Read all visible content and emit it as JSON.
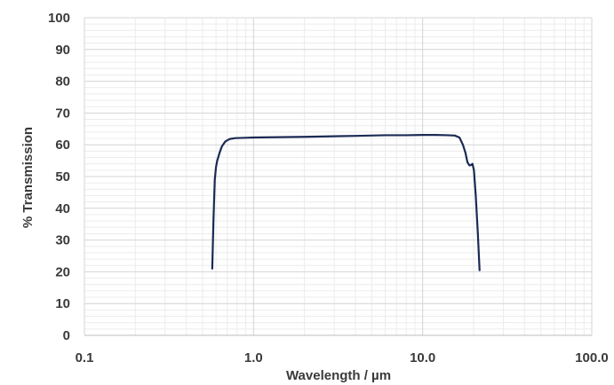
{
  "chart_data": {
    "type": "line",
    "title": "",
    "xlabel": "Wavelength / µm",
    "ylabel": "% Transmission",
    "x_scale": "log",
    "xlim": [
      0.1,
      100.0
    ],
    "ylim": [
      0,
      100
    ],
    "grid": true,
    "legend": "none",
    "x_ticks": [
      {
        "value": 0.1,
        "label": "0.1"
      },
      {
        "value": 1.0,
        "label": "1.0"
      },
      {
        "value": 10.0,
        "label": "10.0"
      },
      {
        "value": 100.0,
        "label": "100.0"
      }
    ],
    "y_ticks": [
      {
        "value": 0,
        "label": "0"
      },
      {
        "value": 10,
        "label": "10"
      },
      {
        "value": 20,
        "label": "20"
      },
      {
        "value": 30,
        "label": "30"
      },
      {
        "value": 40,
        "label": "40"
      },
      {
        "value": 50,
        "label": "50"
      },
      {
        "value": 60,
        "label": "60"
      },
      {
        "value": 70,
        "label": "70"
      },
      {
        "value": 80,
        "label": "80"
      },
      {
        "value": 90,
        "label": "90"
      },
      {
        "value": 100,
        "label": "100"
      }
    ],
    "series": [
      {
        "color": "#1b2a55",
        "x": [
          0.57,
          0.58,
          0.59,
          0.6,
          0.61,
          0.63,
          0.65,
          0.68,
          0.72,
          0.78,
          0.9,
          1.0,
          2.0,
          4.0,
          6.0,
          8.0,
          10.0,
          12.0,
          14.0,
          15.5,
          16.5,
          17.3,
          17.9,
          18.4,
          18.9,
          19.3,
          19.7,
          20.1,
          20.6,
          21.2,
          21.7
        ],
        "y": [
          21,
          37,
          49,
          53,
          55,
          57.5,
          59.5,
          61,
          61.8,
          62.1,
          62.2,
          62.3,
          62.5,
          62.8,
          63,
          63,
          63.1,
          63.1,
          63,
          62.9,
          62.3,
          60,
          57.5,
          54.5,
          53.5,
          53.6,
          54,
          52,
          44,
          32,
          20.5
        ]
      }
    ]
  }
}
